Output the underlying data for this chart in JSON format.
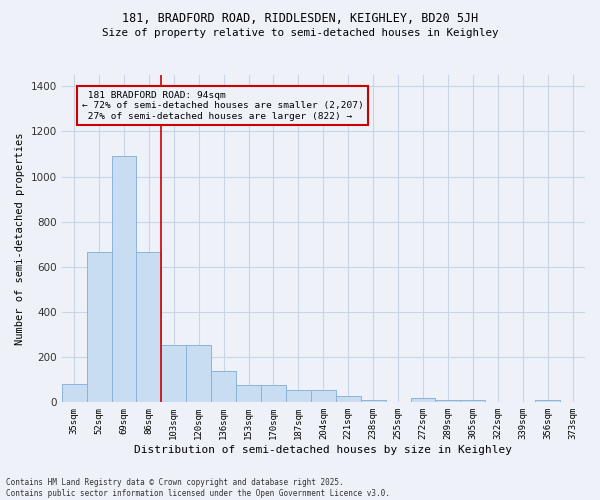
{
  "title_line1": "181, BRADFORD ROAD, RIDDLESDEN, KEIGHLEY, BD20 5JH",
  "title_line2": "Size of property relative to semi-detached houses in Keighley",
  "xlabel": "Distribution of semi-detached houses by size in Keighley",
  "ylabel": "Number of semi-detached properties",
  "categories": [
    "35sqm",
    "52sqm",
    "69sqm",
    "86sqm",
    "103sqm",
    "120sqm",
    "136sqm",
    "153sqm",
    "170sqm",
    "187sqm",
    "204sqm",
    "221sqm",
    "238sqm",
    "255sqm",
    "272sqm",
    "289sqm",
    "305sqm",
    "322sqm",
    "339sqm",
    "356sqm",
    "373sqm"
  ],
  "values": [
    80,
    665,
    1090,
    665,
    255,
    255,
    140,
    75,
    75,
    55,
    55,
    30,
    10,
    0,
    20,
    10,
    10,
    0,
    0,
    10,
    0
  ],
  "bar_color": "#c9ddf2",
  "bar_edge_color": "#8ab4d8",
  "subject_line_color": "#cc0000",
  "annotation_box_color": "#cc0000",
  "subject_label": "181 BRADFORD ROAD: 94sqm",
  "pct_smaller": 72,
  "n_smaller": 2207,
  "pct_larger": 27,
  "n_larger": 822,
  "ylim": [
    0,
    1450
  ],
  "yticks": [
    0,
    200,
    400,
    600,
    800,
    1000,
    1200,
    1400
  ],
  "grid_color": "#c8d4e8",
  "bg_color": "#eef2f8",
  "footer_line1": "Contains HM Land Registry data © Crown copyright and database right 2025.",
  "footer_line2": "Contains public sector information licensed under the Open Government Licence v3.0."
}
